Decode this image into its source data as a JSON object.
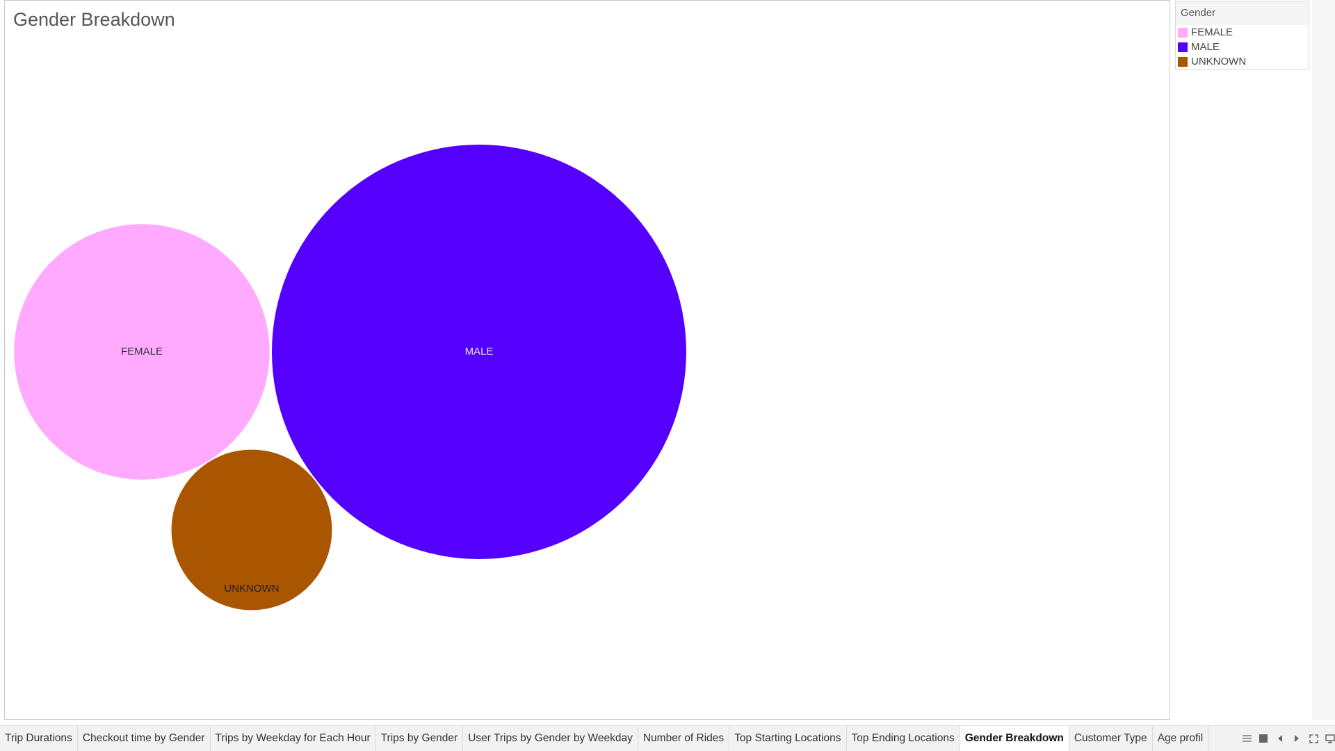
{
  "dashboard": {
    "title": "Gender Breakdown"
  },
  "legend": {
    "title": "Gender",
    "items": [
      {
        "label": "FEMALE",
        "color": "#ffaaff"
      },
      {
        "label": "MALE",
        "color": "#5500ff"
      },
      {
        "label": "UNKNOWN",
        "color": "#aa5500"
      }
    ]
  },
  "chart_data": {
    "type": "bubble",
    "title": "Gender Breakdown",
    "categories": [
      "FEMALE",
      "MALE",
      "UNKNOWN"
    ],
    "relative_size": [
      0.38,
      1.0,
      0.15
    ],
    "colors": [
      "#ffaaff",
      "#5500ff",
      "#aa5500"
    ],
    "label_colors": [
      "#333333",
      "#e6e6ff",
      "#222222"
    ],
    "legend_position": "top-right"
  },
  "tabs": [
    {
      "label": "Trip Durations"
    },
    {
      "label": "Checkout time by Gender"
    },
    {
      "label": "Trips by Weekday for Each Hour"
    },
    {
      "label": "Trips by Gender"
    },
    {
      "label": "User Trips by Gender by Weekday"
    },
    {
      "label": "Number of Rides"
    },
    {
      "label": "Top Starting Locations"
    },
    {
      "label": "Top Ending Locations"
    },
    {
      "label": "Gender Breakdown",
      "active": true
    },
    {
      "label": "Customer Type"
    },
    {
      "label": "Age profil"
    }
  ],
  "tab_controls": [
    "show-filmstrip-icon",
    "show-tabs-icon",
    "previous-sheet-icon",
    "next-sheet-icon",
    "fullscreen-icon",
    "presentation-mode-icon"
  ]
}
